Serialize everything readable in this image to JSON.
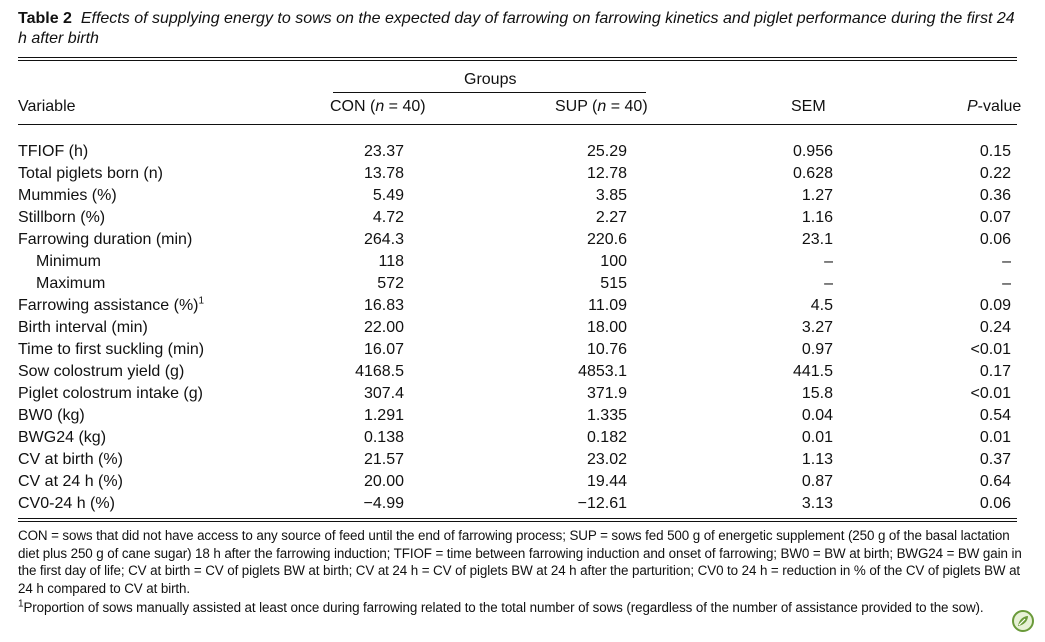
{
  "caption": {
    "label": "Table 2",
    "text": "Effects of supplying energy to sows on the expected day of farrowing on farrowing kinetics and piglet performance during the first 24 h after birth"
  },
  "header": {
    "groups": "Groups",
    "variable": "Variable",
    "con": "CON (n = 40)",
    "sup": "SUP (n = 40)",
    "sem": "SEM",
    "pvalue": "P-value"
  },
  "rows": [
    {
      "variable": "TFIOF (h)",
      "con": "23.37",
      "sup": "25.29",
      "sem": "0.956",
      "p": "0.15"
    },
    {
      "variable": "Total piglets born (n)",
      "con": "13.78",
      "sup": "12.78",
      "sem": "0.628",
      "p": "0.22"
    },
    {
      "variable": "Mummies (%)",
      "con": "5.49",
      "sup": "3.85",
      "sem": "1.27",
      "p": "0.36"
    },
    {
      "variable": "Stillborn (%)",
      "con": "4.72",
      "sup": "2.27",
      "sem": "1.16",
      "p": "0.07"
    },
    {
      "variable": "Farrowing duration (min)",
      "con": "264.3",
      "sup": "220.6",
      "sem": "23.1",
      "p": "0.06"
    },
    {
      "variable": "Minimum",
      "con": "118",
      "sup": "100",
      "sem": "–",
      "p": "–"
    },
    {
      "variable": "Maximum",
      "con": "572",
      "sup": "515",
      "sem": "–",
      "p": "–"
    },
    {
      "variable": "Farrowing assistance (%)",
      "sup_mark": "1",
      "con": "16.83",
      "sup": "11.09",
      "sem": "4.5",
      "p": "0.09"
    },
    {
      "variable": "Birth interval (min)",
      "con": "22.00",
      "sup": "18.00",
      "sem": "3.27",
      "p": "0.24"
    },
    {
      "variable": "Time to first suckling (min)",
      "con": "16.07",
      "sup": "10.76",
      "sem": "0.97",
      "p": "<0.01"
    },
    {
      "variable": "Sow colostrum yield (g)",
      "con": "4168.5",
      "sup": "4853.1",
      "sem": "441.5",
      "p": "0.17"
    },
    {
      "variable": "Piglet colostrum intake (g)",
      "con": "307.4",
      "sup": "371.9",
      "sem": "15.8",
      "p": "<0.01"
    },
    {
      "variable": "BW0 (kg)",
      "con": "1.291",
      "sup": "1.335",
      "sem": "0.04",
      "p": "0.54"
    },
    {
      "variable": "BWG24 (kg)",
      "con": "0.138",
      "sup": "0.182",
      "sem": "0.01",
      "p": "0.01"
    },
    {
      "variable": "CV at birth (%)",
      "con": "21.57",
      "sup": "23.02",
      "sem": "1.13",
      "p": "0.37"
    },
    {
      "variable": "CV at 24 h (%)",
      "con": "20.00",
      "sup": "19.44",
      "sem": "0.87",
      "p": "0.64"
    },
    {
      "variable": "CV0-24 h (%)",
      "con": "−4.99",
      "sup": "−12.61",
      "sem": "3.13",
      "p": "0.06"
    }
  ],
  "footnotes": {
    "abbrev": "CON = sows that did not have access to any source of feed until the end of farrowing process; SUP = sows fed 500 g of energetic supplement (250 g of the basal lactation diet plus 250 g of cane sugar) 18 h after the farrowing induction; TFIOF = time between farrowing induction and onset of farrowing; BW0 = BW at birth; BWG24 = BW gain in the first day of life; CV at birth = CV of piglets BW at birth; CV at 24 h = CV of piglets BW at 24 h after the parturition; CV0 to 24 h = reduction in % of the CV of piglets BW at 24 h compared to CV at birth.",
    "note1_mark": "1",
    "note1": "Proportion of sows manually assisted at least once during farrowing related to the total number of sows (regardless of the number of assistance provided to the sow)."
  }
}
